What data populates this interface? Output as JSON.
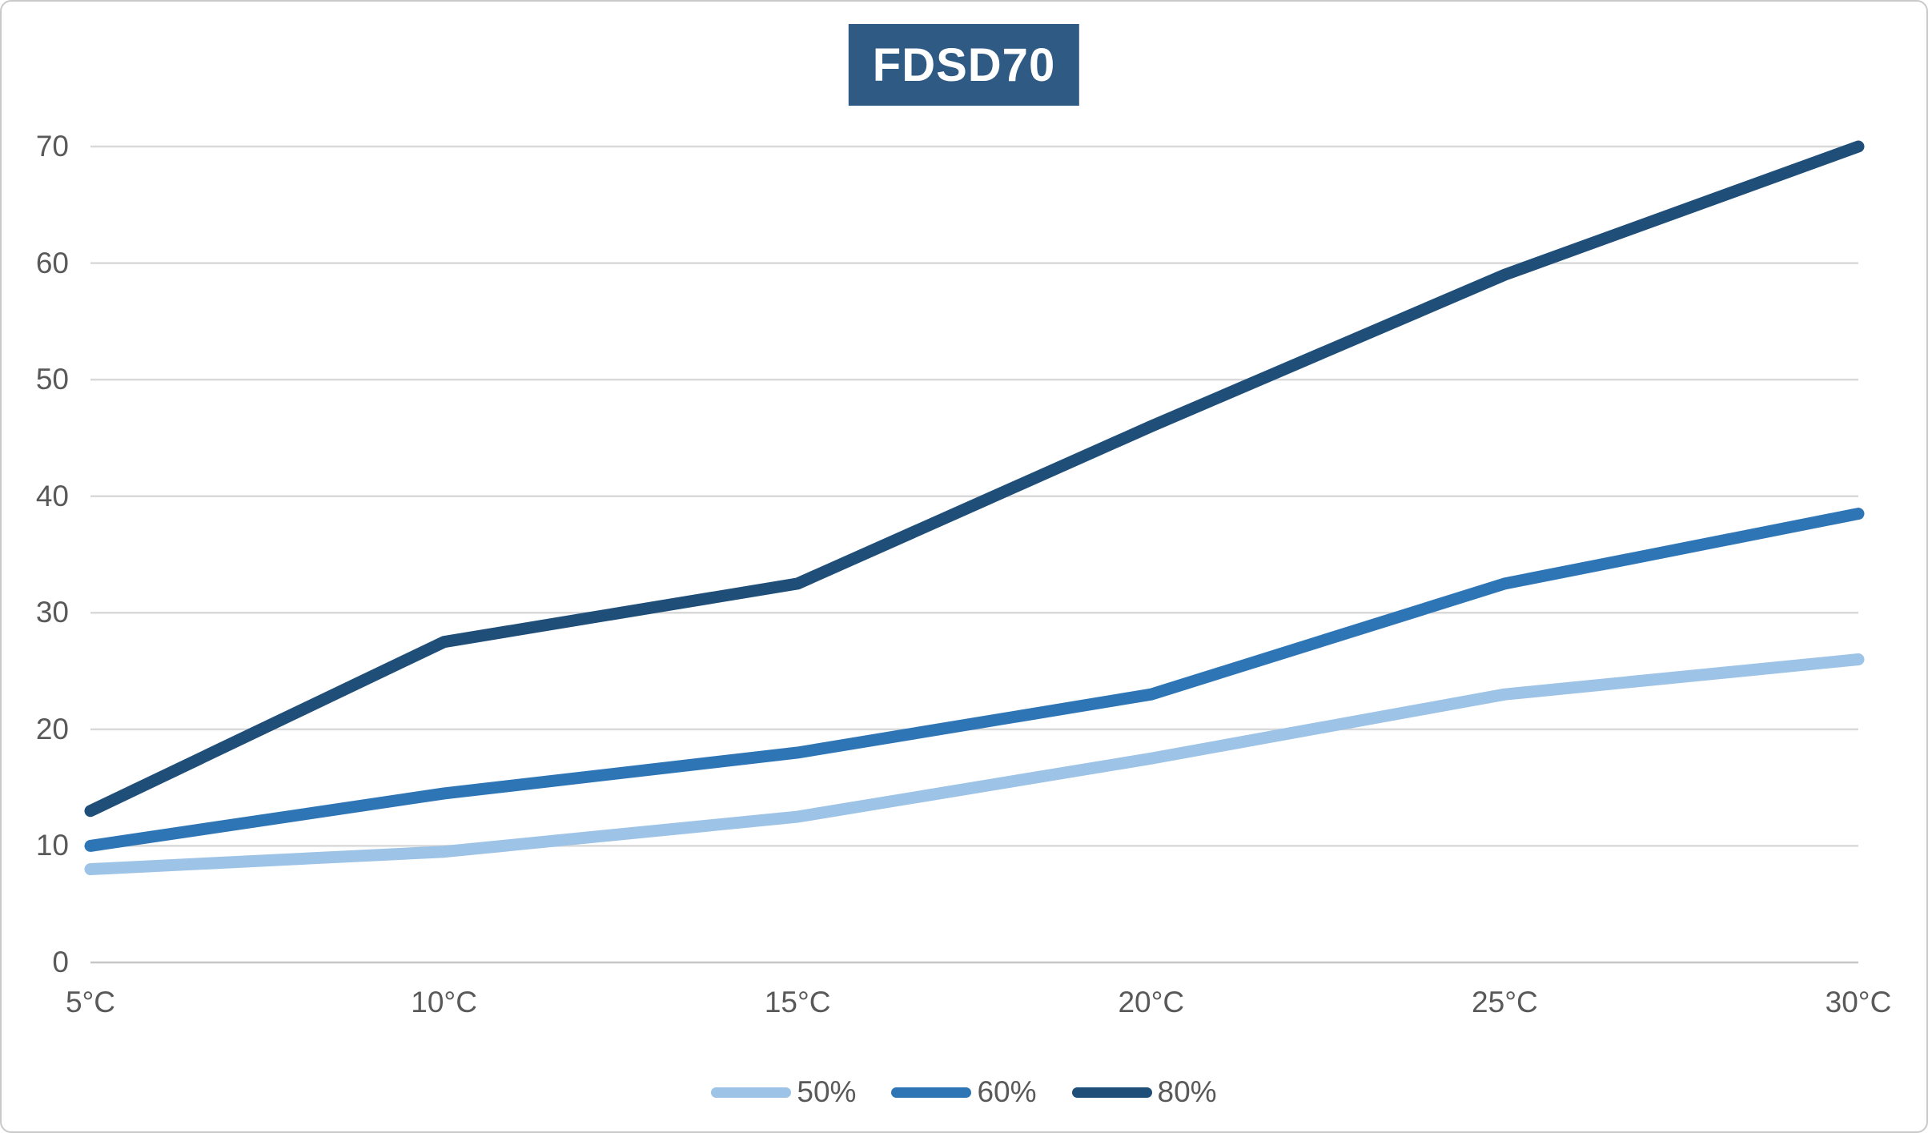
{
  "title": "FDSD70",
  "colors": {
    "title_bg": "#2E5A84",
    "title_text": "#FFFFFF",
    "axis_label": "#595959",
    "gridline": "#D9D9D9",
    "axis_line": "#C6C6C6",
    "series_50": "#9DC3E6",
    "series_60": "#2E75B6",
    "series_80": "#1F4E79"
  },
  "chart_data": {
    "type": "line",
    "title": "FDSD70",
    "categories": [
      "5°C",
      "10°C",
      "15°C",
      "20°C",
      "25°C",
      "30°C"
    ],
    "series": [
      {
        "name": "50%",
        "color": "#9DC3E6",
        "values": [
          8,
          9.5,
          12.5,
          17.5,
          23,
          26
        ]
      },
      {
        "name": "60%",
        "color": "#2E75B6",
        "values": [
          10,
          14.5,
          18,
          23,
          32.5,
          38.5
        ]
      },
      {
        "name": "80%",
        "color": "#1F4E79",
        "values": [
          13,
          27.5,
          32.5,
          46,
          59,
          70
        ]
      }
    ],
    "xlabel": "",
    "ylabel": "",
    "ylim": [
      0,
      70
    ],
    "yticks": [
      0,
      10,
      20,
      30,
      40,
      50,
      60,
      70
    ],
    "grid": true,
    "legend_position": "bottom",
    "legend_labels": [
      "50%",
      "60%",
      "80%"
    ]
  }
}
